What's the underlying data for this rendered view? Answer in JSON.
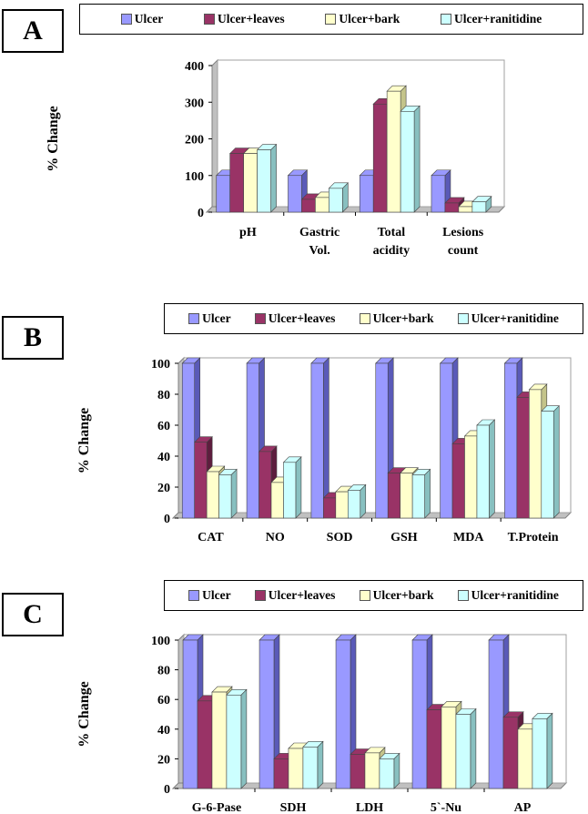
{
  "series_names": [
    "Ulcer",
    "Ulcer+leaves",
    "Ulcer+bark",
    "Ulcer+ranitidine"
  ],
  "series_colors": [
    "#9999ff",
    "#993366",
    "#ffffcc",
    "#ccffff"
  ],
  "series_side_colors": [
    "#5a5ab8",
    "#5e1d3e",
    "#c4c48a",
    "#88c0c0"
  ],
  "chart_data": [
    {
      "type": "bar",
      "panel": "A",
      "title": "",
      "ylabel": "% Change",
      "xlabel": "",
      "ylim": [
        0,
        400
      ],
      "yticks": [
        0,
        100,
        200,
        300,
        400
      ],
      "categories": [
        [
          "pH"
        ],
        [
          "Gastric",
          "Vol."
        ],
        [
          "Total",
          "acidity"
        ],
        [
          "Lesions",
          "count"
        ]
      ],
      "series": [
        {
          "name": "Ulcer",
          "values": [
            100,
            100,
            100,
            100
          ]
        },
        {
          "name": "Ulcer+leaves",
          "values": [
            160,
            35,
            295,
            25
          ]
        },
        {
          "name": "Ulcer+bark",
          "values": [
            160,
            40,
            330,
            15
          ]
        },
        {
          "name": "Ulcer+ranitidine",
          "values": [
            170,
            65,
            275,
            28
          ]
        }
      ]
    },
    {
      "type": "bar",
      "panel": "B",
      "title": "",
      "ylabel": "% Change",
      "xlabel": "",
      "ylim": [
        0,
        100
      ],
      "yticks": [
        0,
        20,
        40,
        60,
        80,
        100
      ],
      "categories": [
        [
          "CAT"
        ],
        [
          "NO"
        ],
        [
          "SOD"
        ],
        [
          "GSH"
        ],
        [
          "MDA"
        ],
        [
          "T.Protein"
        ]
      ],
      "series": [
        {
          "name": "Ulcer",
          "values": [
            100,
            100,
            100,
            100,
            100,
            100
          ]
        },
        {
          "name": "Ulcer+leaves",
          "values": [
            49,
            43,
            13,
            29,
            48,
            78
          ]
        },
        {
          "name": "Ulcer+bark",
          "values": [
            30,
            23,
            17,
            29,
            53,
            83
          ]
        },
        {
          "name": "Ulcer+ranitidine",
          "values": [
            28,
            36,
            18,
            28,
            60,
            69
          ]
        }
      ]
    },
    {
      "type": "bar",
      "panel": "C",
      "title": "",
      "ylabel": "% Change",
      "xlabel": "",
      "ylim": [
        0,
        100
      ],
      "yticks": [
        0,
        20,
        40,
        60,
        80,
        100
      ],
      "categories": [
        [
          "G-6-Pase"
        ],
        [
          "SDH"
        ],
        [
          "LDH"
        ],
        [
          "5`-Nu"
        ],
        [
          "AP"
        ]
      ],
      "series": [
        {
          "name": "Ulcer",
          "values": [
            100,
            100,
            100,
            100,
            100
          ]
        },
        {
          "name": "Ulcer+leaves",
          "values": [
            59,
            20,
            23,
            53,
            48
          ]
        },
        {
          "name": "Ulcer+bark",
          "values": [
            65,
            27,
            24,
            55,
            40
          ]
        },
        {
          "name": "Ulcer+ranitidine",
          "values": [
            63,
            28,
            20,
            50,
            47
          ]
        }
      ]
    }
  ]
}
